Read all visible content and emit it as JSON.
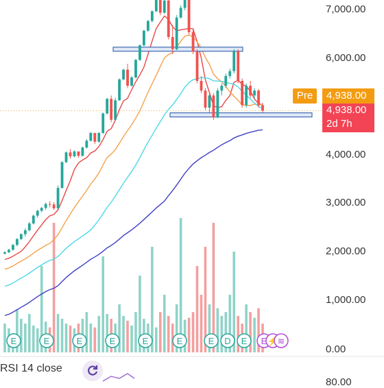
{
  "price_axis": [
    "7,000.00",
    "6,000.00",
    "5,000.00",
    "4,000.00",
    "3,000.00",
    "2,000.00",
    "1,000.00",
    "0.00"
  ],
  "pre_badge": "Pre",
  "pre_price": "4,938.00",
  "current_price": "4,938.00",
  "countdown": "2d 7h",
  "rsi_label": "RSI 14 close",
  "rsi_axis_partial": "80.00",
  "event_markers": [
    "E",
    "E",
    "E",
    "E",
    "E",
    "E",
    "E",
    "D",
    "E",
    "E",
    "⚡",
    "≋",
    "E"
  ],
  "colors": {
    "up": "#26a69a",
    "down": "#ef5350",
    "ma_red": "#e84545",
    "ma_orange": "#f5a04a",
    "ma_cyan": "#4dd8e6",
    "ma_blue": "#3f3fc4",
    "pre_orange": "#f39c12",
    "current_red": "#f24455",
    "support_line": "#1e4fa3"
  },
  "chart_data": {
    "type": "candlestick",
    "y_range": [
      0,
      7300
    ],
    "current_price": 4938,
    "support_levels": [
      6200,
      4850
    ],
    "candles": [
      [
        2000,
        2050,
        1980,
        2030
      ],
      [
        2030,
        2100,
        2010,
        2080
      ],
      [
        2080,
        2200,
        2060,
        2180
      ],
      [
        2180,
        2320,
        2150,
        2300
      ],
      [
        2300,
        2420,
        2280,
        2400
      ],
      [
        2400,
        2520,
        2350,
        2480
      ],
      [
        2480,
        2650,
        2460,
        2620
      ],
      [
        2620,
        2800,
        2600,
        2780
      ],
      [
        2780,
        2900,
        2740,
        2880
      ],
      [
        2880,
        2960,
        2850,
        2940
      ],
      [
        2940,
        3050,
        2900,
        3020
      ],
      [
        3020,
        3080,
        2950,
        3010
      ],
      [
        3010,
        3060,
        2900,
        2930
      ],
      [
        2930,
        3400,
        2920,
        3350
      ],
      [
        3350,
        3900,
        3340,
        3880
      ],
      [
        3880,
        4100,
        3860,
        4080
      ],
      [
        4080,
        4150,
        3950,
        4000
      ],
      [
        4000,
        4120,
        3980,
        4100
      ],
      [
        4100,
        4080,
        3970,
        4010
      ],
      [
        4010,
        4200,
        4000,
        4180
      ],
      [
        4180,
        4350,
        4160,
        4320
      ],
      [
        4320,
        4500,
        4300,
        4480
      ],
      [
        4480,
        4450,
        4250,
        4300
      ],
      [
        4300,
        4500,
        4280,
        4480
      ],
      [
        4480,
        4900,
        4460,
        4880
      ],
      [
        4880,
        5200,
        4860,
        5180
      ],
      [
        5180,
        5250,
        4700,
        4750
      ],
      [
        4750,
        5200,
        4740,
        5150
      ],
      [
        5150,
        5600,
        5140,
        5580
      ],
      [
        5580,
        5800,
        5560,
        5780
      ],
      [
        5780,
        5900,
        5400,
        5450
      ],
      [
        5450,
        5650,
        5430,
        5620
      ],
      [
        5620,
        6000,
        5600,
        5980
      ],
      [
        5980,
        6300,
        5960,
        6280
      ],
      [
        6280,
        6600,
        6260,
        6580
      ],
      [
        6580,
        6800,
        6560,
        6780
      ],
      [
        6780,
        7000,
        6750,
        6980
      ],
      [
        6980,
        7300,
        6960,
        7250
      ],
      [
        7250,
        7300,
        6900,
        6950
      ],
      [
        6950,
        7250,
        6930,
        7200
      ],
      [
        7200,
        7300,
        6400,
        6450
      ],
      [
        6450,
        6700,
        6100,
        6200
      ],
      [
        6200,
        6900,
        6180,
        6850
      ],
      [
        6850,
        7100,
        6830,
        7050
      ],
      [
        7050,
        7300,
        7000,
        7250
      ],
      [
        7250,
        7280,
        6500,
        6550
      ],
      [
        6550,
        6600,
        6100,
        6150
      ],
      [
        6150,
        6200,
        5500,
        5550
      ],
      [
        5550,
        5650,
        5300,
        5350
      ],
      [
        5350,
        5400,
        4950,
        5000
      ],
      [
        5000,
        5300,
        4900,
        5250
      ],
      [
        5250,
        5300,
        4750,
        4800
      ],
      [
        4800,
        5400,
        4780,
        5350
      ],
      [
        5350,
        5500,
        5250,
        5450
      ],
      [
        5450,
        5700,
        5400,
        5650
      ],
      [
        5650,
        5800,
        5600,
        5750
      ],
      [
        5750,
        6200,
        5700,
        6150
      ],
      [
        6150,
        6200,
        5500,
        5550
      ],
      [
        5550,
        5600,
        5000,
        5050
      ],
      [
        5050,
        5500,
        5000,
        5450
      ],
      [
        5450,
        5550,
        5200,
        5250
      ],
      [
        5250,
        5400,
        5180,
        5350
      ],
      [
        5350,
        5380,
        5000,
        5050
      ],
      [
        5050,
        5100,
        4900,
        4938
      ]
    ],
    "volume": [
      300,
      250,
      200,
      450,
      350,
      300,
      400,
      280,
      250,
      900,
      320,
      260,
      1350,
      400,
      350,
      300,
      280,
      250,
      300,
      350,
      420,
      300,
      260,
      380,
      1000,
      400,
      350,
      300,
      500,
      380,
      330,
      280,
      420,
      800,
      350,
      300,
      1100,
      260,
      420,
      600,
      380,
      300,
      500,
      1400,
      340,
      360,
      420,
      900,
      600,
      1100,
      500,
      1350,
      460,
      380,
      420,
      600,
      1050,
      380,
      300,
      500,
      420,
      360,
      460,
      300
    ]
  }
}
